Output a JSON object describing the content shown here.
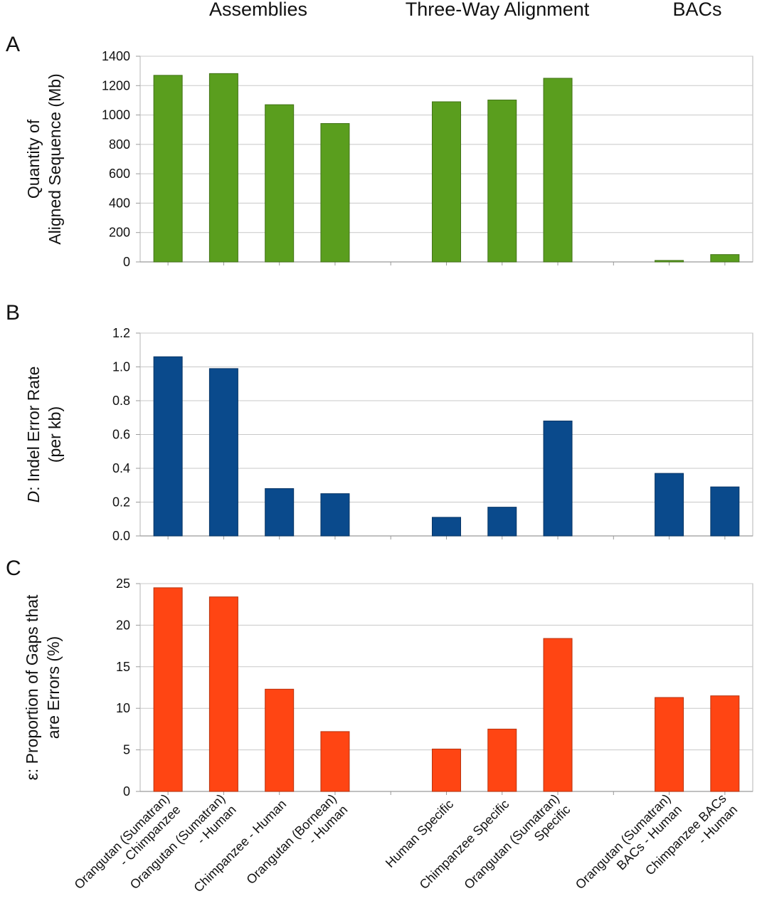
{
  "group_headers": [
    "Assemblies",
    "Three-Way Alignment",
    "BACs"
  ],
  "categories": [
    [
      "Orangutan (Sumatran)",
      "- Chimpanzee"
    ],
    [
      "Orangutan (Sumatran)",
      "- Human"
    ],
    [
      "Chimpanzee - Human"
    ],
    [
      "Orangutan (Bornean)",
      "- Human"
    ],
    [],
    [
      "Human Specific"
    ],
    [
      "Chimpanzee Specific"
    ],
    [
      "Orangutan (Sumatran)",
      "Specific"
    ],
    [],
    [
      "Orangutan (Sumatran)",
      "BACs - Human"
    ],
    [
      "Chimpanzee BACs",
      "- Human"
    ]
  ],
  "chart_data": [
    {
      "type": "bar",
      "panel": "A",
      "ylabel": [
        "Quantity of",
        "Aligned Sequence (Mb)"
      ],
      "ylim": [
        0,
        1400
      ],
      "yticks": [
        0,
        200,
        400,
        600,
        800,
        1000,
        1200,
        1400
      ],
      "tick_labels": [
        "0",
        "200",
        "400",
        "600",
        "800",
        "1000",
        "1200",
        "1400"
      ],
      "values": [
        1270,
        1282,
        1070,
        942,
        null,
        1090,
        1102,
        1250,
        null,
        10,
        50
      ],
      "color": "#5a9e1e",
      "grid": true
    },
    {
      "type": "bar",
      "panel": "B",
      "ylabel_italic": "D",
      "ylabel": [
        ": Indel Error Rate",
        "(per kb)"
      ],
      "ylim": [
        0,
        1.2
      ],
      "yticks": [
        0,
        0.2,
        0.4,
        0.6,
        0.8,
        1.0,
        1.2
      ],
      "tick_labels": [
        "0.0",
        "0.2",
        "0.4",
        "0.6",
        "0.8",
        "1.0",
        "1.2"
      ],
      "values": [
        1.06,
        0.99,
        0.28,
        0.25,
        null,
        0.11,
        0.17,
        0.68,
        null,
        0.37,
        0.29
      ],
      "color": "#0a4a8c",
      "grid": true
    },
    {
      "type": "bar",
      "panel": "C",
      "ylabel": [
        "ε: Proportion of Gaps that",
        "are Errors (%)"
      ],
      "ylim": [
        0,
        25
      ],
      "yticks": [
        0,
        5,
        10,
        15,
        20,
        25
      ],
      "tick_labels": [
        "0",
        "5",
        "10",
        "15",
        "20",
        "25"
      ],
      "values": [
        24.5,
        23.4,
        12.3,
        7.2,
        null,
        5.1,
        7.5,
        18.4,
        null,
        11.3,
        11.5
      ],
      "color": "#ff4513",
      "grid": true
    }
  ]
}
